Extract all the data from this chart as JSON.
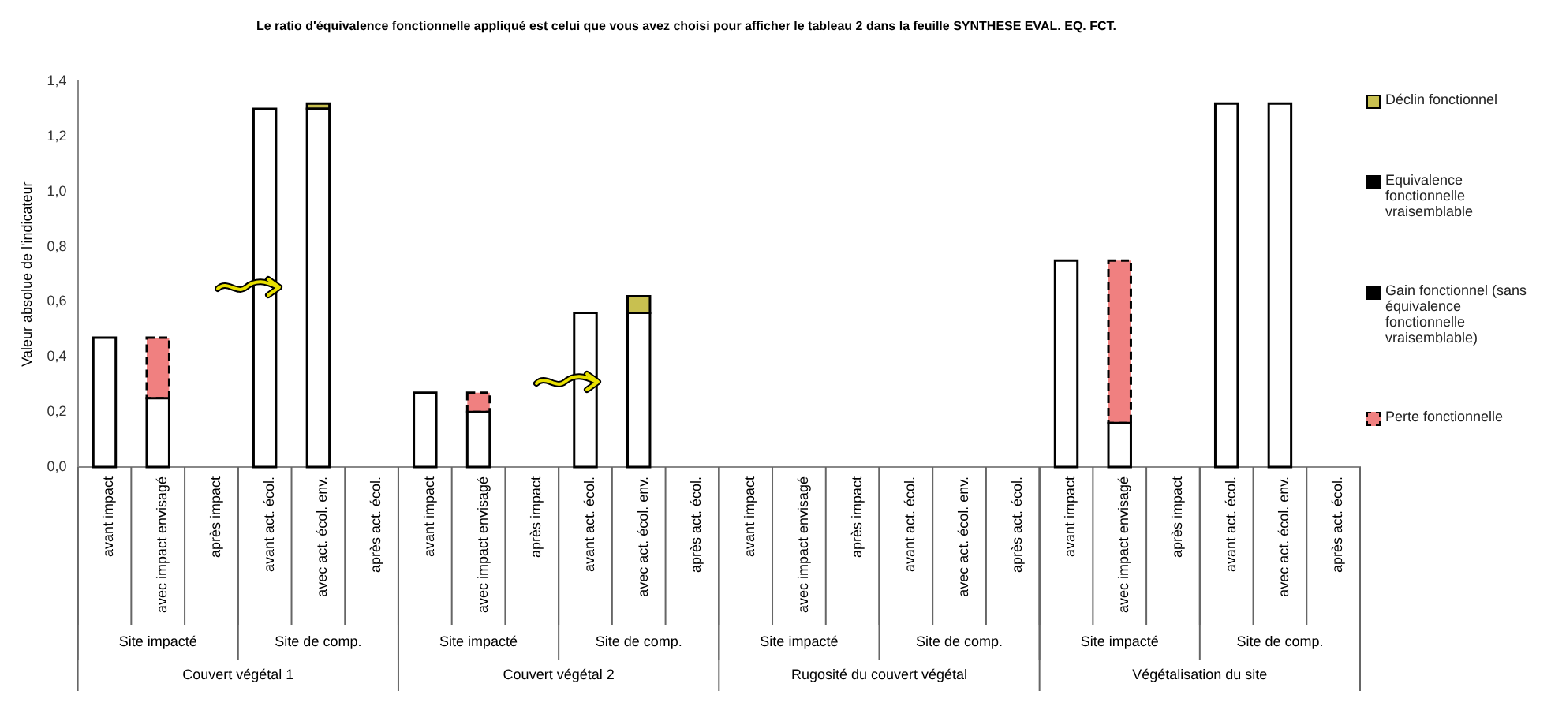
{
  "chart_data": {
    "type": "bar",
    "title": "Le ratio d'équivalence fonctionnelle appliqué est celui que vous avez choisi pour afficher le tableau 2 dans la feuille SYNTHESE EVAL. EQ. FCT.",
    "ylabel": "Valeur absolue de l'indicateur",
    "categories": [
      "avant impact",
      "avec impact envisagé",
      "après impact",
      "avant act. écol.",
      "avec act. écol. env.",
      "après act. écol.",
      "avant impact",
      "avec impact envisagé",
      "après impact",
      "avant act. écol.",
      "avec act. écol. env.",
      "après act. écol.",
      "avant impact",
      "avec impact envisagé",
      "après impact",
      "avant act. écol.",
      "avec act. écol. env.",
      "après act. écol.",
      "avant impact",
      "avec impact envisagé",
      "après impact",
      "avant act. écol.",
      "avec act. écol. env.",
      "après act. écol."
    ],
    "stacked": true,
    "series": [
      {
        "color": "#ffffff",
        "values": [
          0.47,
          0.25,
          null,
          1.3,
          1.3,
          null,
          0.27,
          0.2,
          null,
          0.56,
          0.56,
          null,
          null,
          null,
          null,
          null,
          null,
          null,
          0.75,
          0.16,
          null,
          1.32,
          1.32,
          null
        ]
      },
      {
        "name": "Perte fonctionnelle",
        "color": "#f08080",
        "line_style": "dashed",
        "values": [
          null,
          0.22,
          null,
          null,
          null,
          null,
          null,
          0.07,
          null,
          null,
          null,
          null,
          null,
          null,
          null,
          null,
          null,
          null,
          null,
          0.59,
          null,
          null,
          null,
          null
        ]
      },
      {
        "name": "Gain fonctionnel (sans équivalence fonctionnelle vraisemblable)",
        "color": "#000000",
        "values": [
          null,
          null,
          null,
          null,
          null,
          null,
          null,
          null,
          null,
          null,
          null,
          null,
          null,
          null,
          null,
          null,
          null,
          null,
          null,
          null,
          null,
          null,
          null,
          null
        ]
      },
      {
        "name": "Equivalence fonctionnelle vraisemblable",
        "color": "#000000",
        "values": [
          null,
          null,
          null,
          null,
          null,
          null,
          null,
          null,
          null,
          null,
          null,
          null,
          null,
          null,
          null,
          null,
          null,
          null,
          null,
          null,
          null,
          null,
          null,
          null
        ]
      },
      {
        "name": "Déclin fonctionnel",
        "color": "#c8c050",
        "values": [
          null,
          null,
          null,
          null,
          0.02,
          null,
          null,
          null,
          null,
          null,
          0.06,
          null,
          null,
          null,
          null,
          null,
          null,
          null,
          null,
          null,
          null,
          null,
          null,
          null
        ]
      }
    ],
    "ylim": [
      0,
      1.4
    ],
    "yticks": [
      {
        "value": 0,
        "label": "0,0"
      },
      {
        "value": 0.2,
        "label": "0,2"
      },
      {
        "value": 0.4,
        "label": "0,4"
      },
      {
        "value": 0.6,
        "label": "0,6"
      },
      {
        "value": 0.8,
        "label": "0,8"
      },
      {
        "value": 1.0,
        "label": "1,0"
      },
      {
        "value": 1.2,
        "label": "1,2"
      },
      {
        "value": 1.4,
        "label": "1,4"
      }
    ],
    "grid": false,
    "legend": "right",
    "annotations": [
      "Site impacté",
      "Site de comp.",
      "Site impacté",
      "Site de comp.",
      "Site impacté",
      "Site de comp.",
      "Site impacté",
      "Site de comp.",
      "Couvert végétal 1",
      "Couvert végétal 2",
      "Rugosité du couvert végétal",
      "Végétalisation du site"
    ]
  }
}
